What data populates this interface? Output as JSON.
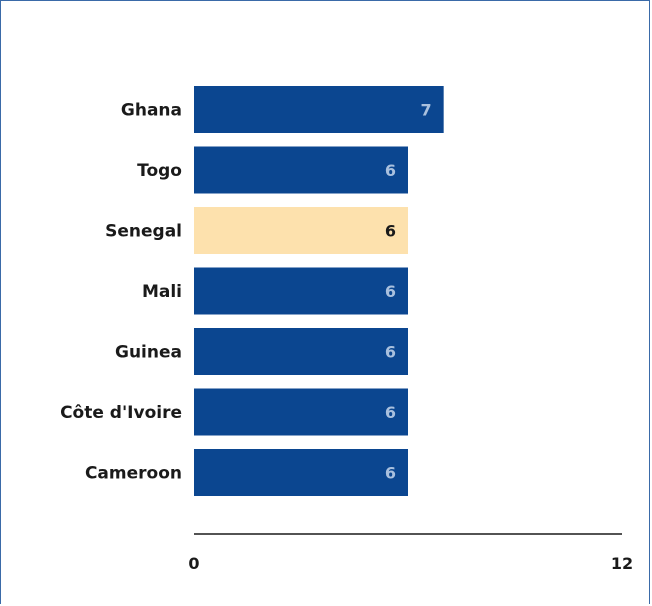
{
  "chart_data": {
    "type": "bar",
    "orientation": "horizontal",
    "title": "",
    "xlabel": "",
    "ylabel": "",
    "categories": [
      "Ghana",
      "Togo",
      "Senegal",
      "Mali",
      "Guinea",
      "Côte d'Ivoire",
      "Cameroon"
    ],
    "values": [
      7,
      6,
      6,
      6,
      6,
      6,
      6
    ],
    "value_labels": [
      "7",
      "6",
      "6",
      "6",
      "6",
      "6",
      "6"
    ],
    "highlight_category": "Senegal",
    "xlim": [
      0,
      12
    ],
    "x_tick_labels": [
      "0",
      "12"
    ],
    "grid": false,
    "legend": "none",
    "colors": {
      "bar": "#0b4690",
      "highlight_bar": "#fde1ad",
      "value_label_on_bar": "#a9c0de",
      "value_label_on_highlight": "#1a1a1a",
      "axis": "#1a1a1a",
      "frame": "#3a6aa8"
    }
  }
}
